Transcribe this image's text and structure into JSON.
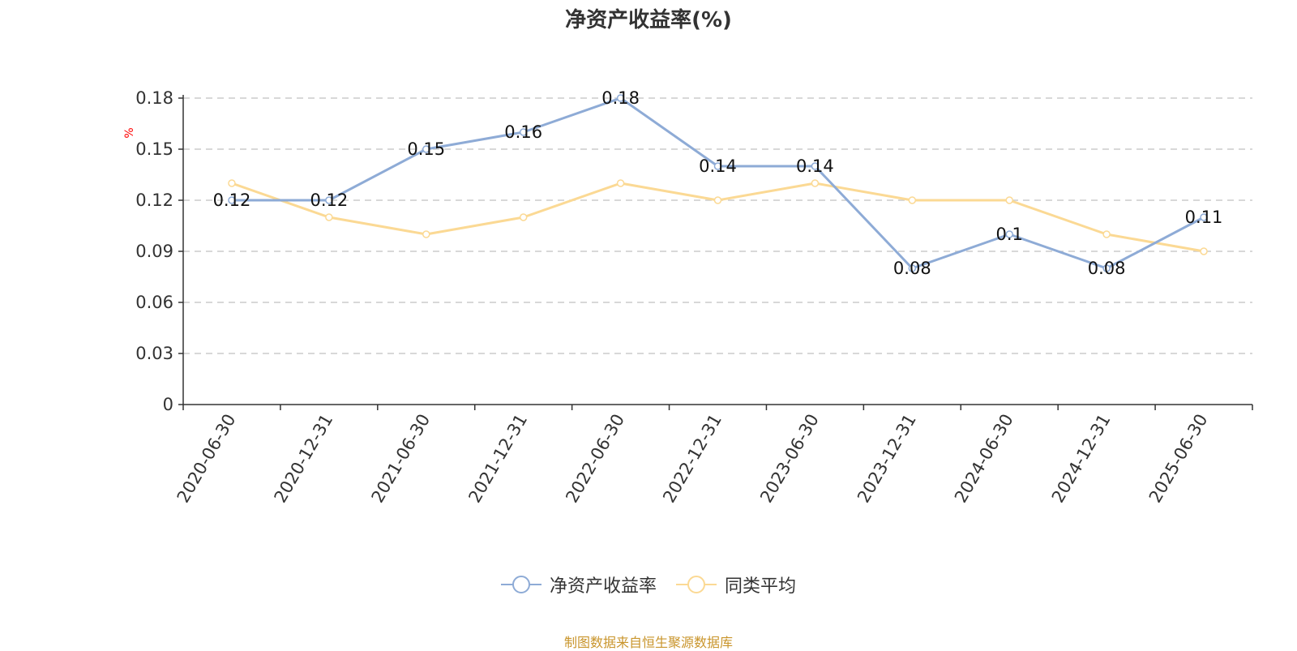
{
  "chart_data": {
    "type": "line",
    "title": "净资产收益率(%)",
    "ylabel": "%",
    "categories": [
      "2020-06-30",
      "2020-12-31",
      "2021-06-30",
      "2021-12-31",
      "2022-06-30",
      "2022-12-31",
      "2023-06-30",
      "2023-12-31",
      "2024-06-30",
      "2024-12-31",
      "2025-06-30"
    ],
    "ylim": [
      0,
      0.18
    ],
    "yticks": [
      "0",
      "0.03",
      "0.06",
      "0.09",
      "0.12",
      "0.15",
      "0.18"
    ],
    "grid": true,
    "legend_position": "bottom",
    "series": [
      {
        "name": "净资产收益率",
        "color": "#8eabd6",
        "values": [
          0.12,
          0.12,
          0.15,
          0.16,
          0.18,
          0.14,
          0.14,
          0.08,
          0.1,
          0.08,
          0.11
        ],
        "labels": [
          "0.12",
          "0.12",
          "0.15",
          "0.16",
          "0.18",
          "0.14",
          "0.14",
          "0.08",
          "0.1",
          "0.08",
          "0.11"
        ]
      },
      {
        "name": "同类平均",
        "color": "#fbd994",
        "values": [
          0.13,
          0.11,
          0.1,
          0.11,
          0.13,
          0.12,
          0.13,
          0.12,
          0.12,
          0.1,
          0.09
        ]
      }
    ]
  },
  "source_text": "制图数据来自恒生聚源数据库"
}
